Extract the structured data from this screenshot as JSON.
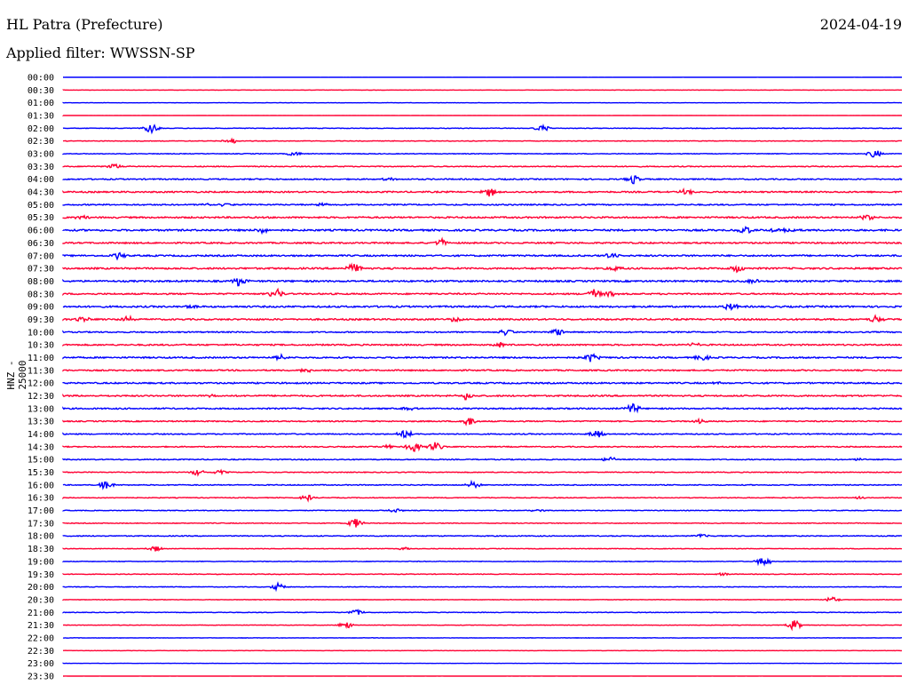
{
  "header": {
    "station": "HL Patra (Prefecture)",
    "date": "2024-04-19",
    "filter": "Applied filter: WWSSN-SP"
  },
  "chart_data": {
    "type": "line",
    "title": "HL Patra (Prefecture)",
    "ylabel": "HNZ - 25000",
    "row_labels": [
      "00:00",
      "00:30",
      "01:00",
      "01:30",
      "02:00",
      "02:30",
      "03:00",
      "03:30",
      "04:00",
      "04:30",
      "05:00",
      "05:30",
      "06:00",
      "06:30",
      "07:00",
      "07:30",
      "08:00",
      "08:30",
      "09:00",
      "09:30",
      "10:00",
      "10:30",
      "11:00",
      "11:30",
      "12:00",
      "12:30",
      "13:00",
      "13:30",
      "14:00",
      "14:30",
      "15:00",
      "15:30",
      "16:00",
      "16:30",
      "17:00",
      "17:30",
      "18:00",
      "18:30",
      "19:00",
      "19:30",
      "20:00",
      "20:30",
      "21:00",
      "21:30",
      "22:00",
      "22:30",
      "23:00",
      "23:30"
    ],
    "series_colors": [
      "#0000ff",
      "#ff0033"
    ],
    "noise_level": [
      0.05,
      0.15,
      0.15,
      0.05,
      0.3,
      0.3,
      0.35,
      0.45,
      0.6,
      0.7,
      0.6,
      0.75,
      0.85,
      0.7,
      0.75,
      0.8,
      0.8,
      0.7,
      0.8,
      0.75,
      0.6,
      0.7,
      0.7,
      0.65,
      0.7,
      0.7,
      0.65,
      0.55,
      0.5,
      0.5,
      0.45,
      0.4,
      0.45,
      0.35,
      0.35,
      0.35,
      0.45,
      0.3,
      0.3,
      0.3,
      0.3,
      0.25,
      0.3,
      0.25,
      0.2,
      0.15,
      0.1,
      0.05
    ]
  }
}
